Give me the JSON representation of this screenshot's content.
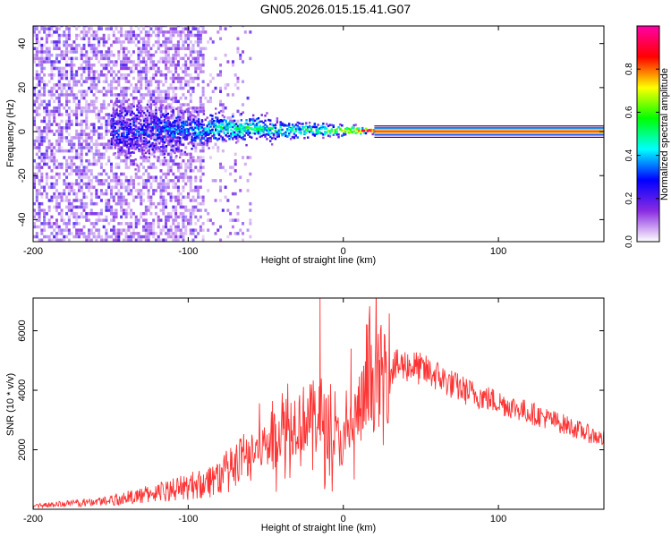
{
  "figure": {
    "title": "GN05.2026.015.15.41.G07"
  },
  "chart_data": [
    {
      "type": "heatmap",
      "name": "spectrogram",
      "xlabel": "Height of straight line (km)",
      "ylabel": "Frequency (Hz)",
      "xlim": [
        -200,
        168
      ],
      "ylim": [
        -50,
        48
      ],
      "xticks": [
        -200,
        -100,
        0,
        100
      ],
      "yticks": [
        -40,
        -20,
        0,
        20,
        40
      ],
      "grid": false,
      "colorbar": {
        "label": "Normalized spectral amplitude",
        "range": [
          0.0,
          1.0
        ],
        "ticks": [
          0.0,
          0.2,
          0.4,
          0.6,
          0.8
        ],
        "colormap": [
          "#ffffff",
          "#8a2be2",
          "#0000ff",
          "#00ffff",
          "#00ff00",
          "#ffff00",
          "#ff0000",
          "#ff00aa"
        ]
      },
      "description_points": {
        "noise_band_x": [
          -200,
          -90
        ],
        "noise_band_sparse_x": [
          -90,
          -60
        ],
        "signal_track": {
          "x": [
            -150,
            -120,
            -100,
            -80,
            -60,
            -40,
            -20,
            0,
            20,
            168
          ],
          "center_freq": [
            0,
            0,
            0,
            1,
            1,
            0,
            0,
            0,
            0,
            0
          ],
          "halfwidth": [
            12,
            10,
            8,
            6,
            5,
            4,
            3,
            2,
            1,
            1
          ],
          "amplitude": [
            0.25,
            0.3,
            0.35,
            0.45,
            0.5,
            0.45,
            0.5,
            0.7,
            0.95,
            0.95
          ]
        }
      }
    },
    {
      "type": "line",
      "name": "snr",
      "xlabel": "Height of straight line (km)",
      "ylabel": "SNR (10 * v/v)",
      "xlim": [
        -200,
        168
      ],
      "ylim": [
        0,
        7100
      ],
      "xticks": [
        -200,
        -100,
        0,
        100
      ],
      "yticks": [
        2000,
        4000,
        6000
      ],
      "grid": false,
      "color": "#ff3333",
      "series": [
        {
          "name": "SNR envelope",
          "x": [
            -200,
            -180,
            -160,
            -140,
            -120,
            -100,
            -90,
            -80,
            -70,
            -60,
            -50,
            -40,
            -30,
            -20,
            -15,
            -10,
            0,
            10,
            20,
            30,
            40,
            45,
            60,
            70,
            80,
            100,
            120,
            140,
            160,
            168
          ],
          "y": [
            120,
            180,
            250,
            380,
            560,
            760,
            900,
            1100,
            1400,
            1800,
            2200,
            2700,
            3000,
            3100,
            3400,
            2600,
            2200,
            3300,
            4300,
            4750,
            4850,
            4800,
            4500,
            4200,
            3950,
            3600,
            3250,
            2900,
            2500,
            2350
          ]
        }
      ],
      "annotations": {
        "spike": {
          "x": -15,
          "y": 7100
        },
        "secondary_spike": {
          "x": 5,
          "y": 5400
        },
        "notch": {
          "x": 7,
          "y": 1000
        }
      }
    }
  ]
}
